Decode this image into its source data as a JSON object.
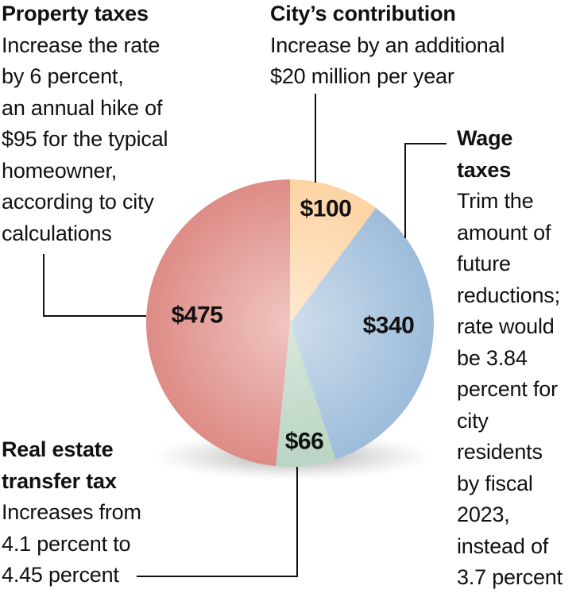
{
  "chart_data": {
    "type": "pie",
    "start": "top",
    "direction": "clockwise",
    "slices": [
      {
        "key": "city",
        "label": "$100",
        "value": 100,
        "color": "#fdd3a2",
        "light": "#ffe9d2"
      },
      {
        "key": "wage",
        "label": "$340",
        "value": 340,
        "color": "#9dbcda",
        "light": "#cfdeec"
      },
      {
        "key": "transfer",
        "label": "$66",
        "value": 66,
        "color": "#b9d5c3",
        "light": "#d8e8dc"
      },
      {
        "key": "property",
        "label": "$475",
        "value": 475,
        "color": "#de8b86",
        "light": "#f0c6c1"
      }
    ]
  },
  "annotations": {
    "property": {
      "title": "Property taxes",
      "lines": [
        "Increase the rate",
        "by 6 percent,",
        "an annual hike of",
        "$95 for the typical",
        "homeowner,",
        "according to city",
        "calculations"
      ]
    },
    "city": {
      "title": "City’s contribution",
      "lines": [
        "Increase by an additional",
        "$20 million per year"
      ]
    },
    "wage": {
      "title_lines": [
        "Wage",
        "taxes"
      ],
      "lines": [
        "Trim the",
        "amount of",
        "future",
        "reductions;",
        "rate would",
        "be 3.84",
        "percent for",
        "city",
        "residents",
        "by fiscal",
        "2023,",
        "instead of",
        "3.7 percent"
      ]
    },
    "transfer": {
      "title_lines": [
        "Real estate",
        "transfer tax"
      ],
      "lines": [
        "Increases from",
        "4.1 percent to",
        "4.45 percent"
      ]
    }
  }
}
